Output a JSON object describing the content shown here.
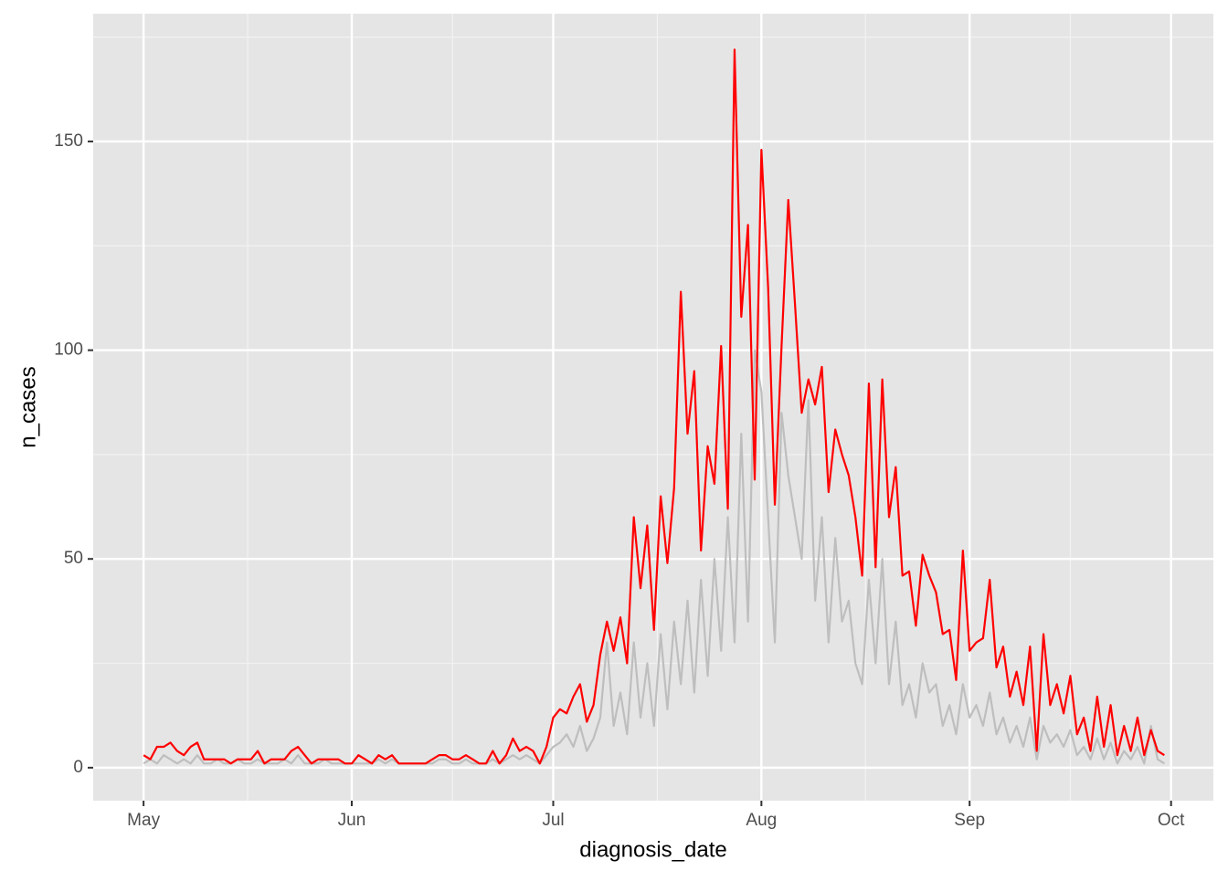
{
  "chart_data": {
    "type": "line",
    "x_label": "diagnosis_date",
    "y_label": "n_cases",
    "x": [
      0,
      1,
      2,
      3,
      4,
      5,
      6,
      7,
      8,
      9,
      10,
      11,
      12,
      13,
      14,
      15,
      16,
      17,
      18,
      19,
      20,
      21,
      22,
      23,
      24,
      25,
      26,
      27,
      28,
      29,
      30,
      31,
      32,
      33,
      34,
      35,
      36,
      37,
      38,
      39,
      40,
      41,
      42,
      43,
      44,
      45,
      46,
      47,
      48,
      49,
      50,
      51,
      52,
      53,
      54,
      55,
      56,
      57,
      58,
      59,
      60,
      61,
      62,
      63,
      64,
      65,
      66,
      67,
      68,
      69,
      70,
      71,
      72,
      73,
      74,
      75,
      76,
      77,
      78,
      79,
      80,
      81,
      82,
      83,
      84,
      85,
      86,
      87,
      88,
      89,
      90,
      91,
      92,
      93,
      94,
      95,
      96,
      97,
      98,
      99,
      100,
      101,
      102,
      103,
      104,
      105,
      106,
      107,
      108,
      109,
      110,
      111,
      112,
      113,
      114,
      115,
      116,
      117,
      118,
      119,
      120,
      121,
      122,
      123,
      124,
      125,
      126,
      127,
      128,
      129,
      130,
      131,
      132,
      133,
      134,
      135,
      136,
      137,
      138,
      139,
      140,
      141,
      142,
      143,
      144,
      145,
      146,
      147,
      148,
      149,
      150,
      151,
      152
    ],
    "series": [
      {
        "color": "#bebebe",
        "values": [
          1,
          2,
          1,
          3,
          2,
          1,
          2,
          1,
          3,
          1,
          1,
          2,
          1,
          1,
          2,
          1,
          1,
          2,
          1,
          1,
          1,
          2,
          1,
          3,
          1,
          1,
          1,
          2,
          1,
          1,
          1,
          1,
          1,
          1,
          1,
          2,
          1,
          2,
          1,
          1,
          1,
          1,
          1,
          1,
          2,
          2,
          1,
          1,
          2,
          1,
          1,
          1,
          2,
          1,
          2,
          3,
          2,
          3,
          2,
          1,
          3,
          5,
          6,
          8,
          5,
          10,
          4,
          7,
          12,
          30,
          10,
          18,
          8,
          30,
          12,
          25,
          10,
          32,
          14,
          35,
          20,
          40,
          18,
          45,
          22,
          50,
          28,
          60,
          30,
          80,
          35,
          100,
          90,
          60,
          30,
          85,
          70,
          60,
          50,
          88,
          40,
          60,
          30,
          55,
          35,
          40,
          25,
          20,
          45,
          25,
          50,
          20,
          35,
          15,
          20,
          12,
          25,
          18,
          20,
          10,
          15,
          8,
          20,
          12,
          15,
          10,
          18,
          8,
          12,
          6,
          10,
          5,
          12,
          2,
          10,
          6,
          8,
          5,
          9,
          3,
          5,
          2,
          7,
          2,
          6,
          1,
          4,
          2,
          5,
          1,
          10,
          2,
          1
        ]
      },
      {
        "color": "#ff0000",
        "values": [
          3,
          2,
          5,
          5,
          6,
          4,
          3,
          5,
          6,
          2,
          2,
          2,
          2,
          1,
          2,
          2,
          2,
          4,
          1,
          2,
          2,
          2,
          4,
          5,
          3,
          1,
          2,
          2,
          2,
          2,
          1,
          1,
          3,
          2,
          1,
          3,
          2,
          3,
          1,
          1,
          1,
          1,
          1,
          2,
          3,
          3,
          2,
          2,
          3,
          2,
          1,
          1,
          4,
          1,
          3,
          7,
          4,
          5,
          4,
          1,
          5,
          12,
          14,
          13,
          17,
          20,
          11,
          15,
          27,
          35,
          28,
          36,
          25,
          60,
          43,
          58,
          33,
          65,
          49,
          67,
          114,
          80,
          95,
          52,
          77,
          68,
          101,
          62,
          172,
          108,
          130,
          69,
          148,
          115,
          63,
          101,
          136,
          111,
          85,
          93,
          87,
          96,
          66,
          81,
          75,
          70,
          60,
          46,
          92,
          48,
          93,
          60,
          72,
          46,
          47,
          34,
          51,
          46,
          42,
          32,
          33,
          21,
          52,
          28,
          30,
          31,
          45,
          24,
          29,
          17,
          23,
          15,
          29,
          4,
          32,
          15,
          20,
          13,
          22,
          8,
          12,
          4,
          17,
          5,
          15,
          3,
          10,
          4,
          12,
          3,
          9,
          4,
          3
        ]
      }
    ],
    "xlim": [
      -7.5,
      159.3
    ],
    "xticks": [
      {
        "value": 0,
        "label": "May"
      },
      {
        "value": 31,
        "label": "Jun"
      },
      {
        "value": 61,
        "label": "Jul"
      },
      {
        "value": 92,
        "label": "Aug"
      },
      {
        "value": 123,
        "label": "Sep"
      },
      {
        "value": 153,
        "label": "Oct"
      }
    ],
    "ylim": [
      -7.9,
      180.6
    ],
    "yticks": [
      0,
      50,
      100,
      150
    ],
    "grid": true
  }
}
